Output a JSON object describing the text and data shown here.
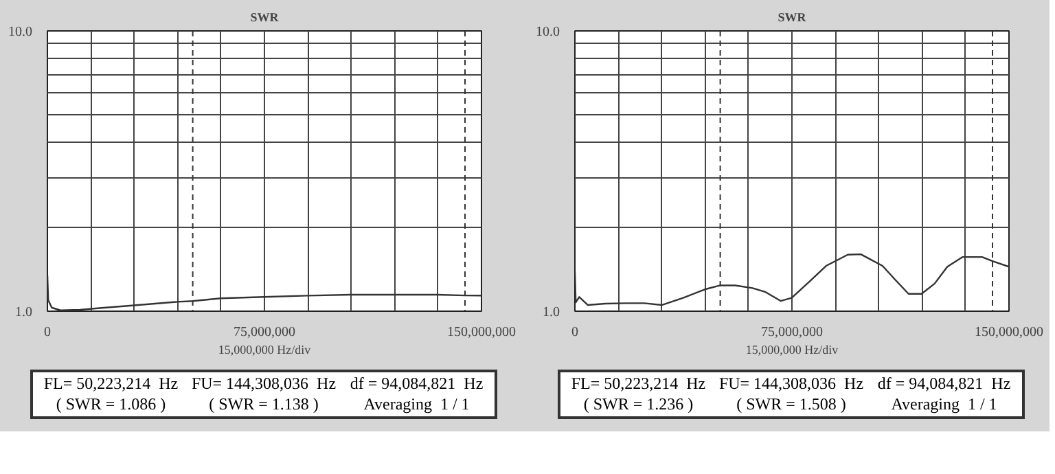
{
  "chart_data": [
    {
      "type": "line",
      "title": "SWR",
      "xlabel": "15,000,000 Hz/div",
      "log": "y",
      "grid": true,
      "marker": "none",
      "line_style": "solid",
      "xlim": [
        0,
        150000000
      ],
      "ylim": [
        1,
        10
      ],
      "xticks": [
        0,
        {
          "value": 15000000,
          "label": null
        },
        {
          "value": 30000000,
          "label": null
        },
        {
          "value": 45000000,
          "label": null
        },
        {
          "value": 60000000,
          "label": null
        },
        {
          "value": 75000000,
          "label": "75,000,000"
        },
        {
          "value": 90000000,
          "label": null
        },
        {
          "value": 105000000,
          "label": null
        },
        {
          "value": 120000000,
          "label": null
        },
        {
          "value": 135000000,
          "label": null
        },
        {
          "value": 150000000,
          "label": "150,000,000"
        }
      ],
      "yticks": [
        {
          "value": 1,
          "label": "1.0"
        },
        {
          "value": 2,
          "label": null
        },
        {
          "value": 3,
          "label": null
        },
        {
          "value": 4,
          "label": null
        },
        {
          "value": 5,
          "label": null
        },
        {
          "value": 6,
          "label": null
        },
        {
          "value": 7,
          "label": null
        },
        {
          "value": 8,
          "label": null
        },
        {
          "value": 9,
          "label": null
        },
        {
          "value": 10,
          "label": "10.0"
        }
      ],
      "ref_lines": [
        {
          "axis": "x",
          "value": 50223214,
          "line_style": "dashed"
        },
        {
          "axis": "x",
          "value": 144308036,
          "line_style": "dashed"
        }
      ],
      "annotations": [
        "FL= 50,223,214  Hz",
        "FU= 144,308,036  Hz",
        "df = 94,084,821  Hz",
        "( SWR = 1.086 )",
        "( SWR = 1.138 )",
        "Averaging  1 / 1"
      ],
      "series": [
        {
          "color": "#333333",
          "x": [
            0,
            300000,
            1500000,
            4500000,
            11200000,
            18000000,
            30000000,
            44900000,
            50200000,
            59900000,
            74900000,
            89800000,
            104800000,
            119800000,
            134700000,
            144500000,
            150000000
          ],
          "values": [
            1.34,
            1.095,
            1.03,
            1.007,
            1.011,
            1.026,
            1.049,
            1.08,
            1.087,
            1.112,
            1.124,
            1.136,
            1.145,
            1.145,
            1.145,
            1.138,
            1.137
          ]
        }
      ]
    },
    {
      "type": "line",
      "title": "SWR",
      "xlabel": "15,000,000 Hz/div",
      "log": "y",
      "grid": true,
      "marker": "none",
      "line_style": "solid",
      "xlim": [
        0,
        150000000
      ],
      "ylim": [
        1,
        10
      ],
      "xticks": [
        0,
        {
          "value": 15000000,
          "label": null
        },
        {
          "value": 30000000,
          "label": null
        },
        {
          "value": 45000000,
          "label": null
        },
        {
          "value": 60000000,
          "label": null
        },
        {
          "value": 75000000,
          "label": "75,000,000"
        },
        {
          "value": 90000000,
          "label": null
        },
        {
          "value": 105000000,
          "label": null
        },
        {
          "value": 120000000,
          "label": null
        },
        {
          "value": 135000000,
          "label": null
        },
        {
          "value": 150000000,
          "label": "150,000,000"
        }
      ],
      "yticks": [
        {
          "value": 1,
          "label": "1.0"
        },
        {
          "value": 2,
          "label": null
        },
        {
          "value": 3,
          "label": null
        },
        {
          "value": 4,
          "label": null
        },
        {
          "value": 5,
          "label": null
        },
        {
          "value": 6,
          "label": null
        },
        {
          "value": 7,
          "label": null
        },
        {
          "value": 8,
          "label": null
        },
        {
          "value": 9,
          "label": null
        },
        {
          "value": 10,
          "label": "10.0"
        }
      ],
      "ref_lines": [
        {
          "axis": "x",
          "value": 50223214,
          "line_style": "dashed"
        },
        {
          "axis": "x",
          "value": 144308036,
          "line_style": "dashed"
        }
      ],
      "annotations": [
        "FL= 50,223,214  Hz",
        "FU= 144,308,036  Hz",
        "df = 94,084,821  Hz",
        "( SWR = 1.236 )",
        "( SWR = 1.508 )",
        "Averaging  1 / 1"
      ],
      "series": [
        {
          "color": "#333333",
          "x": [
            0,
            300000,
            1500000,
            4500000,
            10500000,
            18000000,
            24000000,
            30000000,
            37400000,
            44900000,
            50200000,
            55400000,
            61400000,
            65900000,
            71100000,
            74900000,
            80800000,
            86800000,
            94300000,
            98800000,
            106300000,
            110800000,
            115300000,
            119800000,
            124300000,
            128700000,
            134000000,
            140700000,
            144500000,
            150000000
          ],
          "values": [
            1.39,
            1.076,
            1.124,
            1.052,
            1.064,
            1.068,
            1.068,
            1.052,
            1.116,
            1.196,
            1.236,
            1.236,
            1.209,
            1.17,
            1.088,
            1.116,
            1.268,
            1.451,
            1.591,
            1.596,
            1.451,
            1.291,
            1.153,
            1.153,
            1.254,
            1.441,
            1.561,
            1.561,
            1.506,
            1.441
          ]
        }
      ]
    }
  ]
}
